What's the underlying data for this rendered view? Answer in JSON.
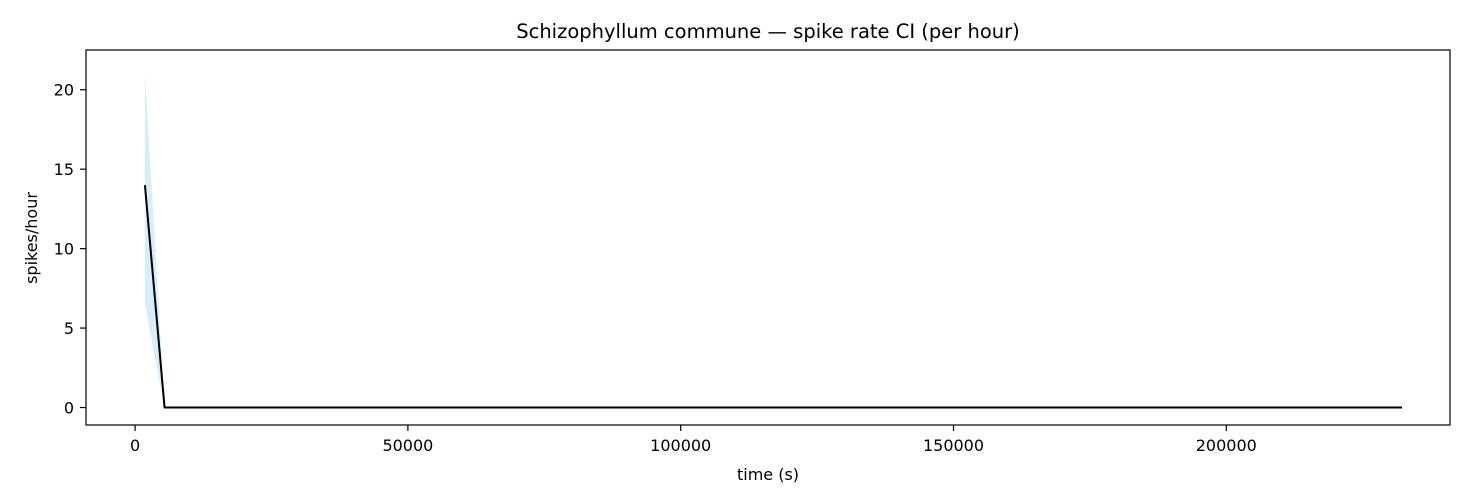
{
  "chart_data": {
    "type": "line",
    "title": "Schizophyllum commune — spike rate CI (per hour)",
    "xlabel": "time (s)",
    "ylabel": "spikes/hour",
    "xlim": [
      -9000,
      241000
    ],
    "ylim": [
      -1.1,
      22.5
    ],
    "xticks": [
      0,
      50000,
      100000,
      150000,
      200000
    ],
    "xtick_labels": [
      "0",
      "50000",
      "100000",
      "150000",
      "200000"
    ],
    "yticks": [
      0,
      5,
      10,
      15,
      20
    ],
    "ytick_labels": [
      "0",
      "5",
      "10",
      "15",
      "20"
    ],
    "grid": false,
    "legend": "none",
    "series": [
      {
        "role": "rate",
        "color": "#000000",
        "x": [
          1800,
          5400,
          232200
        ],
        "y": [
          14,
          0,
          0
        ]
      }
    ],
    "ci_band": {
      "color": "#87ceeb",
      "opacity": 0.35,
      "x": [
        1800,
        5400,
        232200
      ],
      "lower": [
        6.5,
        0,
        0
      ],
      "upper": [
        21,
        0,
        0
      ]
    }
  }
}
